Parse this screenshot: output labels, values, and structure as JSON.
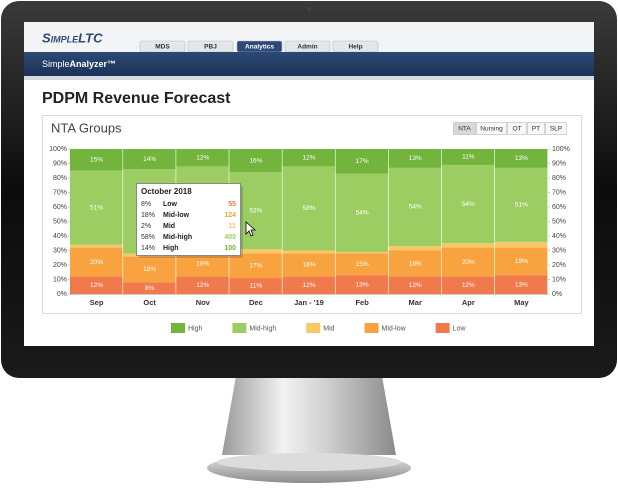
{
  "nav": {
    "logo": "SimpleLTC",
    "tabs": [
      "MDS",
      "PBJ",
      "Analytics",
      "Admin",
      "Help"
    ],
    "app_name": [
      "Simple",
      "Analyzer™"
    ]
  },
  "page": {
    "title": "PDPM Revenue Forecast"
  },
  "panel": {
    "buttons": [
      "NTA",
      "Nursing",
      "OT",
      "PT",
      "SLP"
    ]
  },
  "tooltip": {
    "title": "October 2018",
    "rows": [
      {
        "percent": "8%",
        "name": "Low",
        "value": 55
      },
      {
        "percent": "18%",
        "name": "Mid-low",
        "value": 124
      },
      {
        "percent": "2%",
        "name": "Mid",
        "value": 11
      },
      {
        "percent": "58%",
        "name": "Mid-high",
        "value": 400
      },
      {
        "percent": "14%",
        "name": "High",
        "value": 100
      }
    ]
  },
  "chart_data": {
    "type": "stacked-bar",
    "title": "NTA Groups",
    "categories": [
      "Sep",
      "Oct",
      "Nov",
      "Dec",
      "Jan - '19",
      "Feb",
      "Mar",
      "Apr",
      "May"
    ],
    "series": [
      {
        "name": "High",
        "color": "#72b43c",
        "values": [
          15,
          14,
          12,
          16,
          12,
          17,
          13,
          11,
          13
        ],
        "value_labels": [
          "15%",
          "14%",
          "12%",
          "16%",
          "12%",
          "17%",
          "13%",
          "11%",
          "13%"
        ]
      },
      {
        "name": "Mid-high",
        "color": "#9ccd62",
        "values": [
          51,
          58,
          56,
          53,
          58,
          54,
          54,
          54,
          51
        ],
        "value_labels": [
          "51%",
          null,
          null,
          "53%",
          "58%",
          "54%",
          "54%",
          "54%",
          "51%"
        ]
      },
      {
        "name": "Mid",
        "color": "#f7c868",
        "values": [
          2,
          2,
          2,
          3,
          2,
          1,
          3,
          3,
          4
        ]
      },
      {
        "name": "Mid-low",
        "color": "#f9a240",
        "values": [
          20,
          18,
          18,
          17,
          16,
          15,
          18,
          20,
          19
        ],
        "value_labels": [
          "20%",
          "18%",
          "18%",
          "17%",
          "16%",
          "15%",
          "18%",
          "20%",
          "19%"
        ]
      },
      {
        "name": "Low",
        "color": "#f07a4c",
        "values": [
          12,
          8,
          12,
          11,
          12,
          13,
          12,
          12,
          13
        ],
        "value_labels": [
          "12%",
          "8%",
          "12%",
          "11%",
          "12%",
          "13%",
          "12%",
          "12%",
          "13%"
        ]
      }
    ],
    "ylim": [
      0,
      100
    ],
    "yticks": [
      {
        "value": 0,
        "label": "0%"
      },
      {
        "value": 10,
        "label": "10%"
      },
      {
        "value": 20,
        "label": "20%"
      },
      {
        "value": 30,
        "label": "30%"
      },
      {
        "value": 40,
        "label": "40%"
      },
      {
        "value": 50,
        "label": "50%"
      },
      {
        "value": 60,
        "label": "60%"
      },
      {
        "value": 70,
        "label": "70%"
      },
      {
        "value": 80,
        "label": "80%"
      },
      {
        "value": 90,
        "label": "90%"
      },
      {
        "value": 100,
        "label": "100%"
      }
    ],
    "y2lim": [
      0,
      100
    ],
    "y2ticks": [
      {
        "value": 0,
        "label": "0%"
      },
      {
        "value": 10,
        "label": "10%"
      },
      {
        "value": 20,
        "label": "20%"
      },
      {
        "value": 30,
        "label": "30%"
      },
      {
        "value": 40,
        "label": "40%"
      },
      {
        "value": 50,
        "label": "50%"
      },
      {
        "value": 60,
        "label": "60%"
      },
      {
        "value": 70,
        "label": "70%"
      },
      {
        "value": 80,
        "label": "80%"
      },
      {
        "value": 90,
        "label": "90%"
      },
      {
        "value": 100,
        "label": "100%"
      }
    ],
    "legend": "bottom"
  }
}
